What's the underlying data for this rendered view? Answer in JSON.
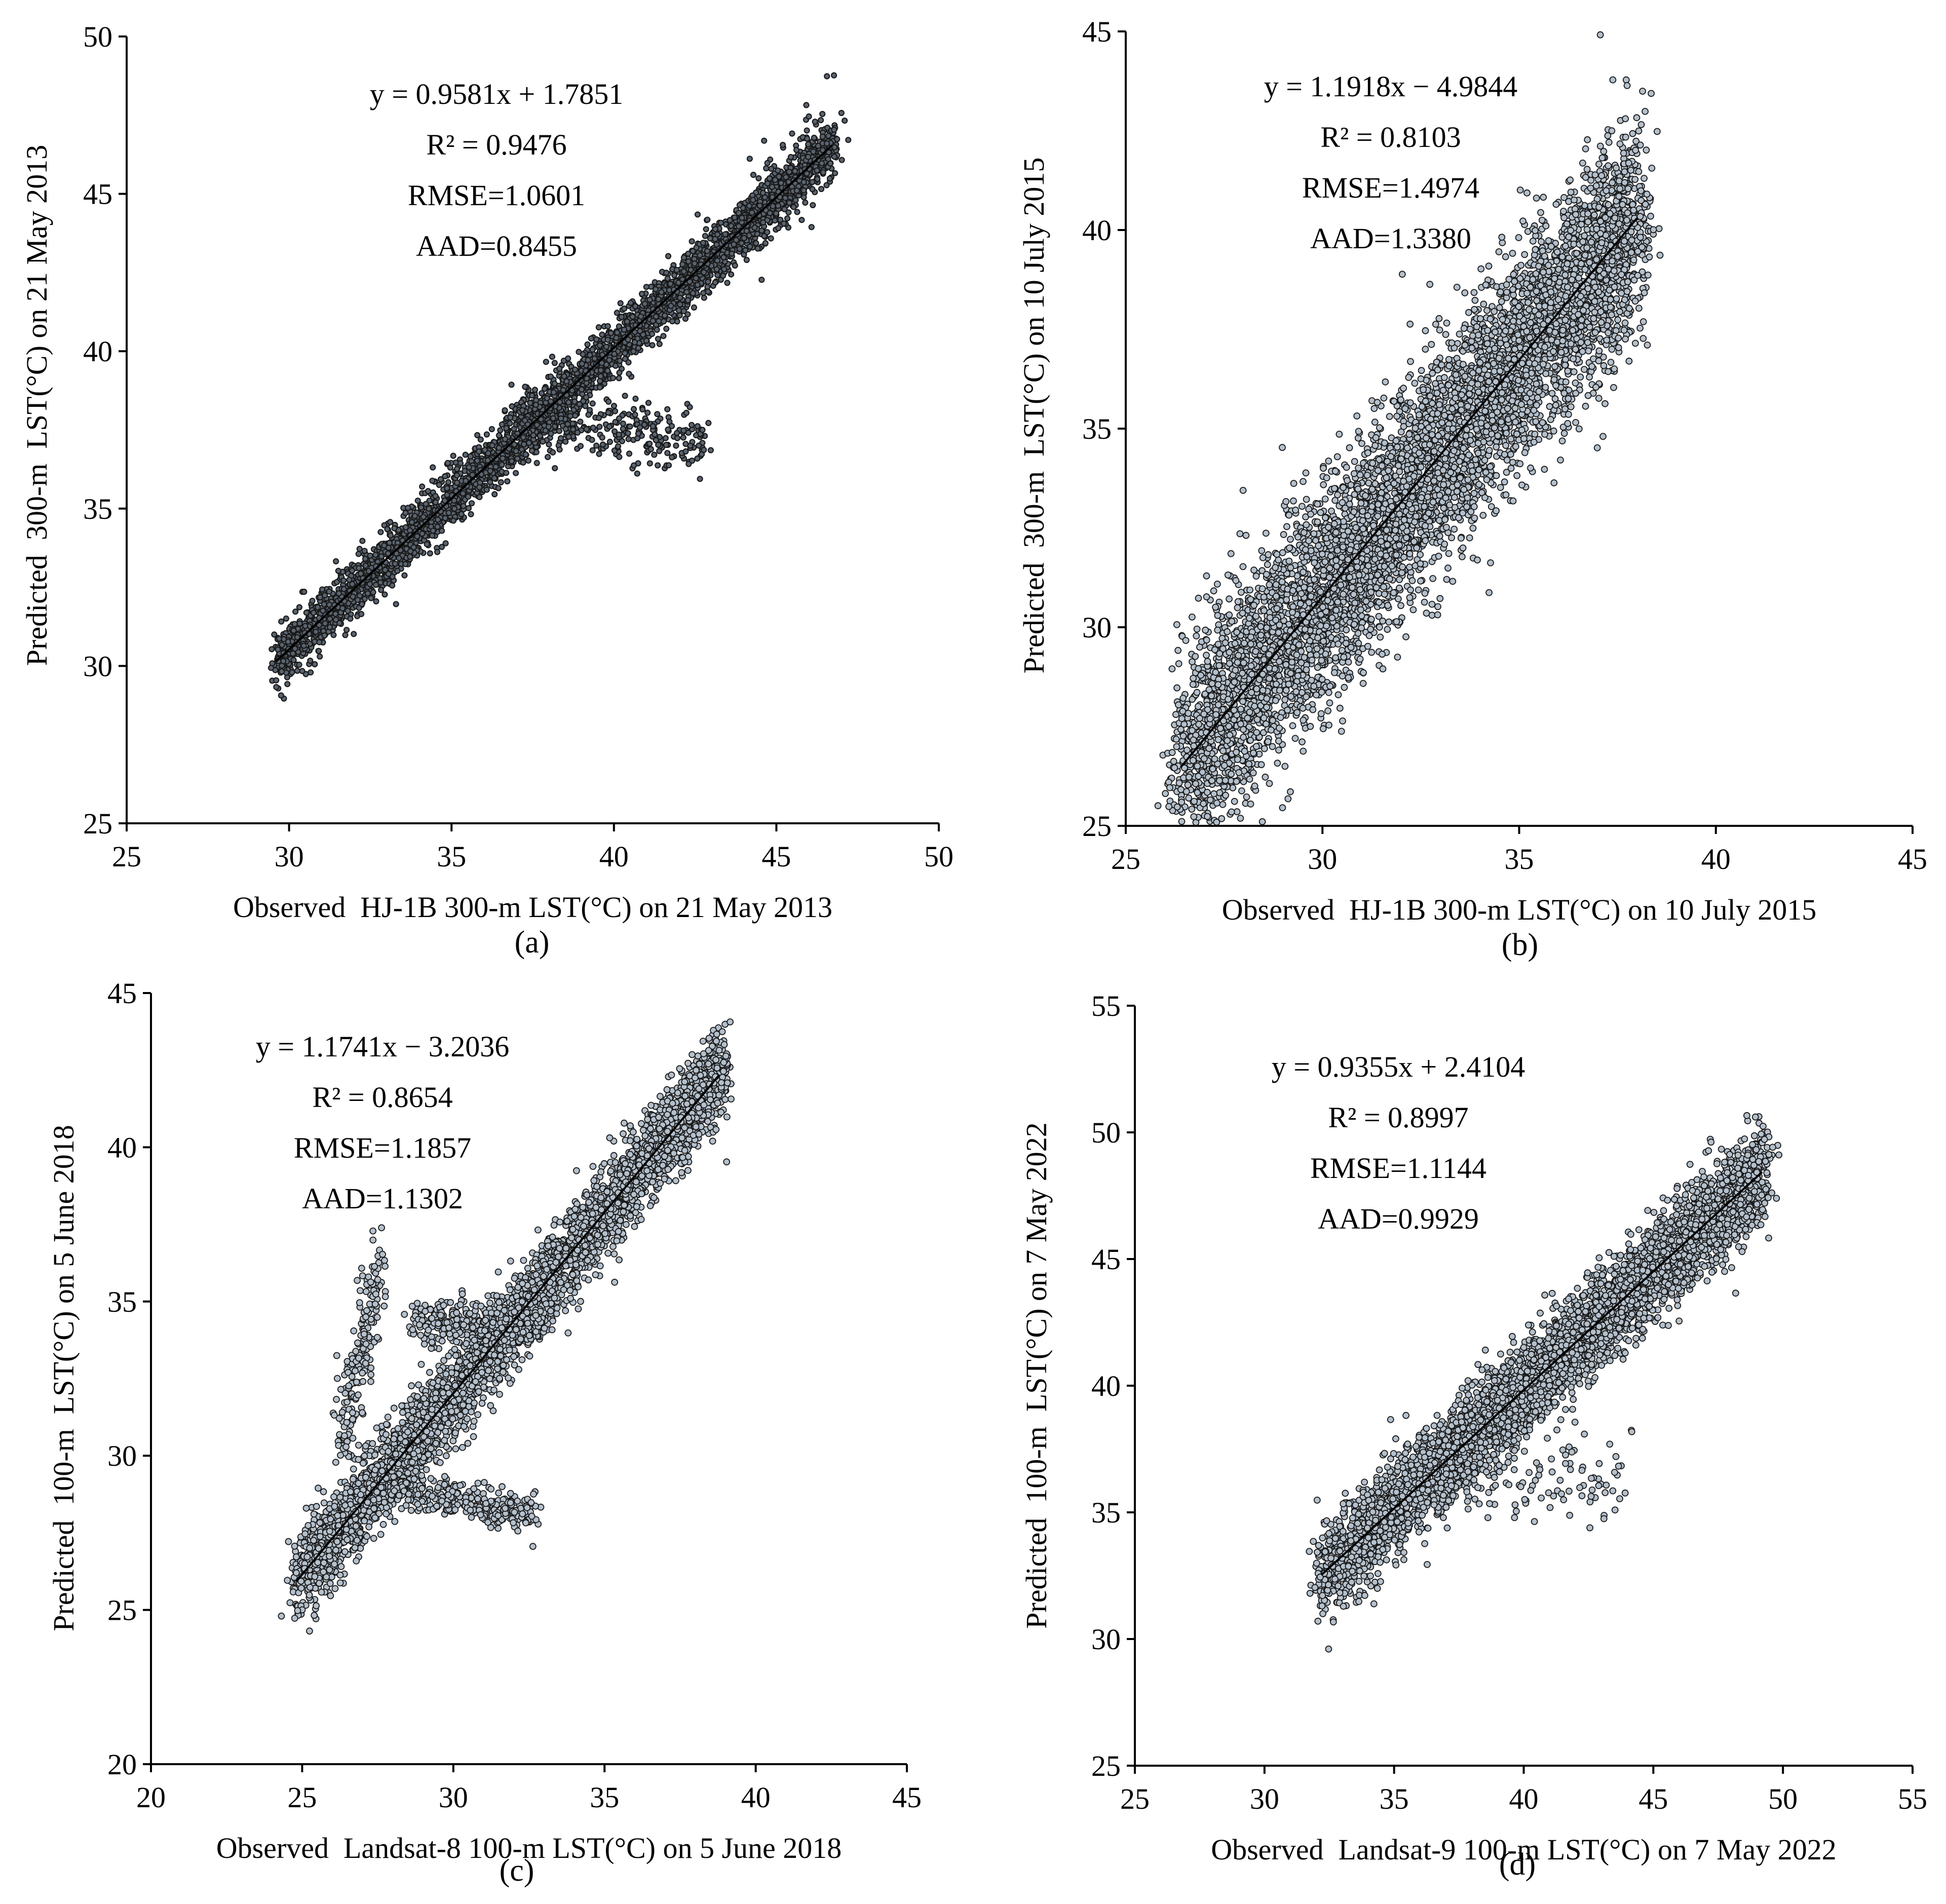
{
  "colors": {
    "point_fill": "#b4c0cc",
    "point_stroke": "#1a1a1a",
    "axis": "#000000",
    "fit_line": "#000000"
  },
  "chart_data": [
    {
      "id": "a",
      "type": "scatter",
      "panel_label": "(a)",
      "xlabel": "Observed  HJ-1B 300-m LST(°C) on 21 May 2013",
      "ylabel": "Predicted  300-m  LST(°C) on 21 May 2013",
      "xlim": [
        25,
        50
      ],
      "ylim": [
        25,
        50
      ],
      "xticks": [
        25,
        30,
        35,
        40,
        45,
        50
      ],
      "yticks": [
        25,
        30,
        35,
        40,
        45,
        50
      ],
      "annotation": [
        "y = 0.9581x + 1.7851",
        "R² = 0.9476",
        "RMSE=1.0601",
        "AAD=0.8455"
      ],
      "fit": {
        "slope": 0.9581,
        "intercept": 1.7851,
        "x_range": [
          29.6,
          46.7
        ]
      },
      "point_style": "dark",
      "clusters": [
        {
          "x_range": [
            29.6,
            46.8
          ],
          "slope": 0.9581,
          "intercept": 1.7851,
          "spread": 0.45,
          "n": 3600
        },
        {
          "x_range": [
            37.0,
            42.8
          ],
          "slope": -0.15,
          "intercept": 43.5,
          "spread": 0.55,
          "n": 320
        },
        {
          "x_range": [
            44.0,
            46.8
          ],
          "slope": 1.05,
          "intercept": -2.2,
          "spread": 0.9,
          "n": 90
        }
      ]
    },
    {
      "id": "b",
      "type": "scatter",
      "panel_label": "(b)",
      "xlabel": "Observed  HJ-1B 300-m LST(°C) on 10 July 2015",
      "ylabel": "Predicted  300-m  LST(°C) on 10 July 2015",
      "xlim": [
        25,
        45
      ],
      "ylim": [
        25,
        45
      ],
      "xticks": [
        25,
        30,
        35,
        40,
        45
      ],
      "yticks": [
        25,
        30,
        35,
        40,
        45
      ],
      "annotation": [
        "y = 1.1918x − 4.9844",
        "R² = 0.8103",
        "RMSE=1.4974",
        "AAD=1.3380"
      ],
      "fit": {
        "slope": 1.1918,
        "intercept": -4.9844,
        "x_range": [
          26.4,
          38.0
        ]
      },
      "point_style": "light",
      "clusters": [
        {
          "x_range": [
            26.4,
            38.0
          ],
          "slope": 1.1918,
          "intercept": -4.9844,
          "spread": 1.3,
          "n": 6500
        }
      ]
    },
    {
      "id": "c",
      "type": "scatter",
      "panel_label": "(c)",
      "xlabel": "Observed  Landsat-8 100-m LST(°C) on 5 June 2018",
      "ylabel": "Predicted  100-m  LST(°C) on 5 June 2018",
      "xlim": [
        20,
        45
      ],
      "ylim": [
        20,
        45
      ],
      "xticks": [
        20,
        25,
        30,
        35,
        40,
        45
      ],
      "yticks": [
        20,
        25,
        30,
        35,
        40,
        45
      ],
      "annotation": [
        "y = 1.1741x − 3.2036",
        "R² = 0.8654",
        "RMSE=1.1857",
        "AAD=1.1302"
      ],
      "fit": {
        "slope": 1.1741,
        "intercept": -3.2036,
        "x_range": [
          24.8,
          38.8
        ]
      },
      "point_style": "light",
      "clusters": [
        {
          "x_range": [
            24.8,
            39.0
          ],
          "slope": 1.1741,
          "intercept": -3.2036,
          "spread": 0.7,
          "n": 4200
        },
        {
          "x_range": [
            28.5,
            33.0
          ],
          "slope": 0.0,
          "intercept": 34.4,
          "spread": 0.35,
          "n": 320
        },
        {
          "x_range": [
            28.0,
            32.8
          ],
          "slope": -0.18,
          "intercept": 34.0,
          "spread": 0.3,
          "n": 320
        },
        {
          "x_range": [
            26.3,
            27.6
          ],
          "slope": 4.5,
          "intercept": -88.0,
          "spread": 0.7,
          "n": 200
        }
      ]
    },
    {
      "id": "d",
      "type": "scatter",
      "panel_label": "(d)",
      "xlabel": "Observed  Landsat-9 100-m LST(°C) on 7 May 2022",
      "ylabel": "Predicted  100-m  LST(°C) on 7 May 2022",
      "xlim": [
        25,
        55
      ],
      "ylim": [
        25,
        55
      ],
      "xticks": [
        25,
        30,
        35,
        40,
        45,
        50,
        55
      ],
      "yticks": [
        25,
        30,
        35,
        40,
        45,
        50,
        55
      ],
      "annotation": [
        "y = 0.9355x + 2.4104",
        "R² = 0.8997",
        "RMSE=1.1144",
        "AAD=0.9929"
      ],
      "fit": {
        "slope": 0.9355,
        "intercept": 2.4104,
        "x_range": [
          32.2,
          49.2
        ]
      },
      "point_style": "light",
      "clusters": [
        {
          "x_range": [
            32.2,
            49.3
          ],
          "slope": 0.9355,
          "intercept": 2.4104,
          "spread": 0.9,
          "n": 5000
        },
        {
          "x_range": [
            38.0,
            44.0
          ],
          "slope": 0.05,
          "intercept": 34.2,
          "spread": 0.9,
          "n": 90
        }
      ]
    }
  ]
}
